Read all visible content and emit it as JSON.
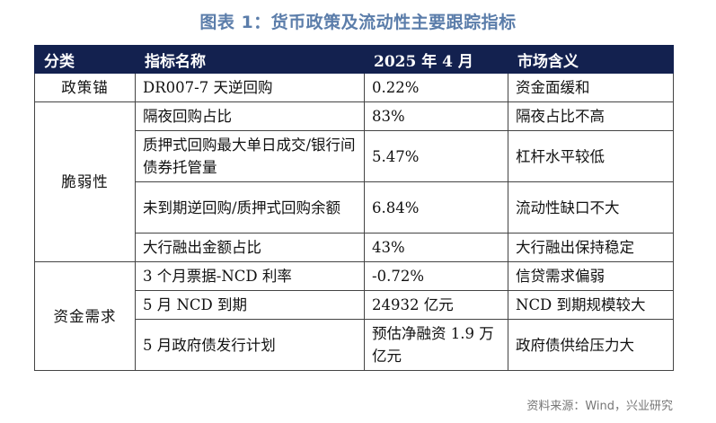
{
  "title": "图表 1：货币政策及流动性主要跟踪指标",
  "headers": [
    "分类",
    "指标名称",
    "2025 年 4 月",
    "市场含义"
  ],
  "rows": [
    {
      "category": "政策锚",
      "indicator": "DR007-7 天逆回购",
      "value": "0.22%",
      "meaning": "资金面缓和"
    },
    {
      "category": "脆弱性",
      "indicator": "隔夜回购占比",
      "value": "83%",
      "meaning": "隔夜占比不高"
    },
    {
      "indicator": "质押式回购最大单日成交/银行间债券托管量",
      "value": "5.47%",
      "meaning": "杠杆水平较低"
    },
    {
      "indicator": "未到期逆回购/质押式回购余额",
      "value": "6.84%",
      "meaning": "流动性缺口不大"
    },
    {
      "indicator": "大行融出金额占比",
      "value": "43%",
      "meaning": "大行融出保持稳定"
    },
    {
      "category": "资金需求",
      "indicator": "3 个月票据-NCD 利率",
      "value": "-0.72%",
      "meaning": "信贷需求偏弱"
    },
    {
      "indicator": "5 月 NCD 到期",
      "value": "24932 亿元",
      "meaning": "NCD 到期规模较大"
    },
    {
      "indicator": "5 月政府债发行计划",
      "value": "预估净融资 1.9 万亿元",
      "meaning": "政府债供给压力大"
    }
  ],
  "source": "资料来源：Wind，兴业研究"
}
